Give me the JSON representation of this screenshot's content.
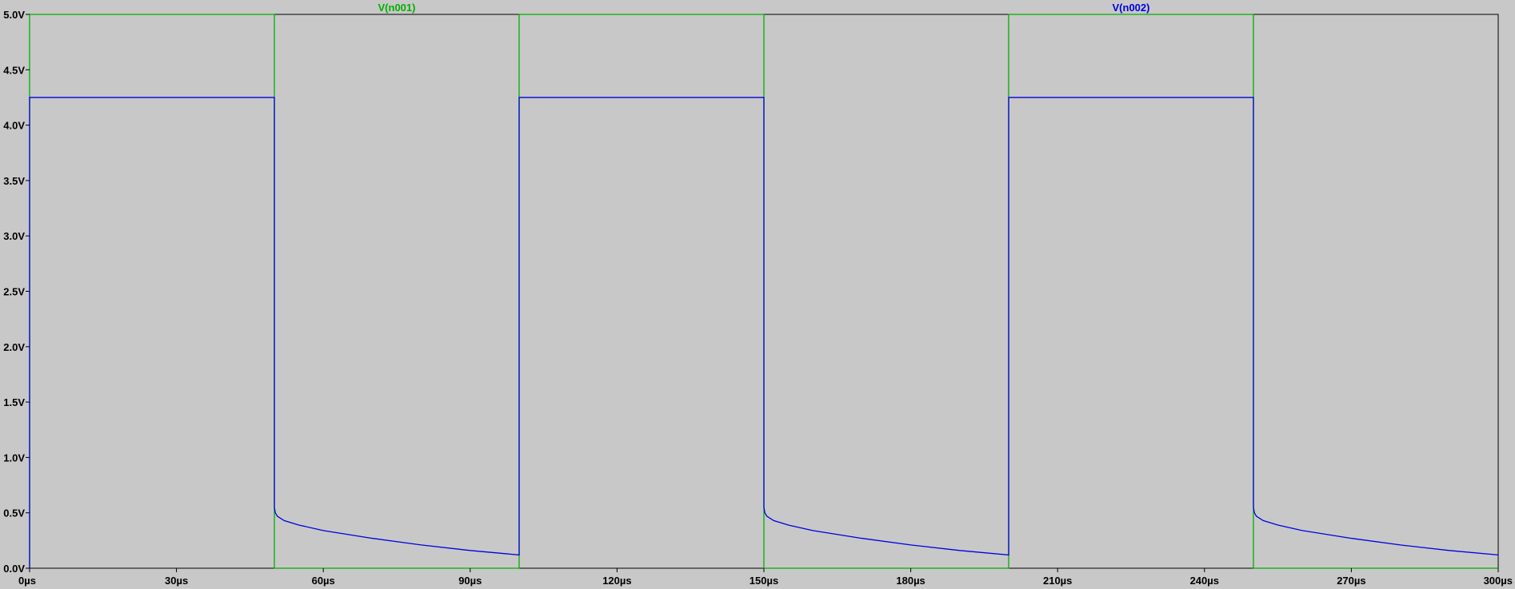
{
  "chart_data": {
    "type": "line",
    "background": "#c8c8c8",
    "frame_color": "#000000",
    "grid": false,
    "xlim": [
      0,
      300
    ],
    "ylim": [
      0,
      5.0
    ],
    "x_unit": "µs",
    "y_unit": "V",
    "x_ticks": [
      {
        "value": 0,
        "label": "0µs"
      },
      {
        "value": 30,
        "label": "30µs"
      },
      {
        "value": 60,
        "label": "60µs"
      },
      {
        "value": 90,
        "label": "90µs"
      },
      {
        "value": 120,
        "label": "120µs"
      },
      {
        "value": 150,
        "label": "150µs"
      },
      {
        "value": 180,
        "label": "180µs"
      },
      {
        "value": 210,
        "label": "210µs"
      },
      {
        "value": 240,
        "label": "240µs"
      },
      {
        "value": 270,
        "label": "270µs"
      },
      {
        "value": 300,
        "label": "300µs"
      }
    ],
    "y_ticks": [
      {
        "value": 0.0,
        "label": "0.0V"
      },
      {
        "value": 0.5,
        "label": "0.5V"
      },
      {
        "value": 1.0,
        "label": "1.0V"
      },
      {
        "value": 1.5,
        "label": "1.5V"
      },
      {
        "value": 2.0,
        "label": "2.0V"
      },
      {
        "value": 2.5,
        "label": "2.5V"
      },
      {
        "value": 3.0,
        "label": "3.0V"
      },
      {
        "value": 3.5,
        "label": "3.5V"
      },
      {
        "value": 4.0,
        "label": "4.0V"
      },
      {
        "value": 4.5,
        "label": "4.5V"
      },
      {
        "value": 5.0,
        "label": "5.0V"
      }
    ],
    "legend_placement": "top",
    "series": [
      {
        "name": "V(n001)",
        "color": "#00b000",
        "legend_at_x": 75,
        "x": [
          0,
          0,
          50,
          50,
          100,
          100,
          150,
          150,
          200,
          200,
          250,
          250,
          300
        ],
        "y": [
          0,
          5.0,
          5.0,
          0,
          0,
          5.0,
          5.0,
          0,
          0,
          5.0,
          5.0,
          0,
          0
        ]
      },
      {
        "name": "V(n002)",
        "color": "#0000e0",
        "legend_at_x": 225,
        "x": [
          0,
          0,
          50,
          50,
          50.2,
          50.6,
          52,
          55,
          60,
          70,
          80,
          90,
          100,
          100,
          150,
          150,
          150.2,
          150.6,
          152,
          155,
          160,
          170,
          180,
          190,
          200,
          200,
          250,
          250,
          250.2,
          250.6,
          252,
          255,
          260,
          270,
          280,
          290,
          300
        ],
        "y": [
          0,
          4.25,
          4.25,
          0.55,
          0.5,
          0.47,
          0.43,
          0.39,
          0.34,
          0.27,
          0.21,
          0.16,
          0.12,
          4.25,
          4.25,
          0.55,
          0.5,
          0.47,
          0.43,
          0.39,
          0.34,
          0.27,
          0.21,
          0.16,
          0.12,
          4.25,
          4.25,
          0.55,
          0.5,
          0.47,
          0.43,
          0.39,
          0.34,
          0.27,
          0.21,
          0.16,
          0.12
        ]
      }
    ]
  }
}
